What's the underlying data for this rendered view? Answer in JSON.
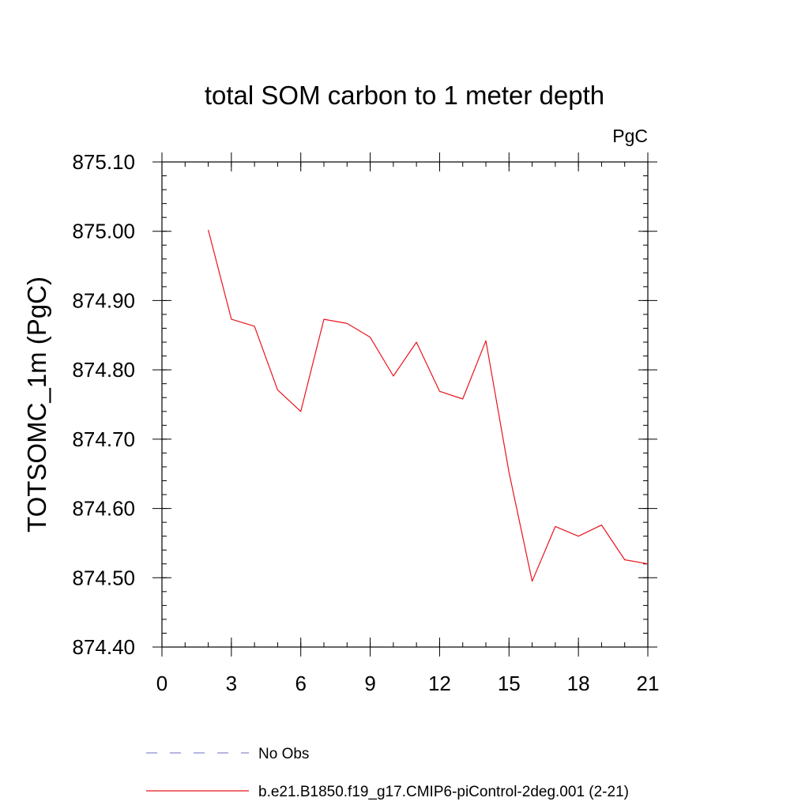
{
  "chart_data": {
    "type": "line",
    "title": "total SOM carbon to 1 meter depth",
    "units_label": "PgC",
    "ylabel": "TOTSOMC_1m  (PgC)",
    "xlabel": "",
    "xlim": [
      0,
      21
    ],
    "ylim": [
      874.4,
      875.1
    ],
    "x_ticks": [
      0,
      3,
      6,
      9,
      12,
      15,
      18,
      21
    ],
    "x_tick_labels": [
      "0",
      "3",
      "6",
      "9",
      "12",
      "15",
      "18",
      "21"
    ],
    "y_ticks": [
      874.4,
      874.5,
      874.6,
      874.7,
      874.8,
      874.9,
      875.0,
      875.1
    ],
    "y_tick_labels": [
      "874.40",
      "874.50",
      "874.60",
      "874.70",
      "874.80",
      "874.90",
      "875.00",
      "875.10"
    ],
    "x_minor_step": 1,
    "y_minor_step": 0.02,
    "series": [
      {
        "name": "b.e21.B1850.f19_g17.CMIP6-piControl-2deg.001 (2-21)",
        "color": "#e8141c",
        "dash": "solid",
        "x": [
          2,
          3,
          4,
          5,
          6,
          7,
          8,
          9,
          10,
          11,
          12,
          13,
          14,
          15,
          16,
          17,
          18,
          19,
          20,
          21
        ],
        "values": [
          875.002,
          874.873,
          874.863,
          874.771,
          874.74,
          874.873,
          874.867,
          874.847,
          874.791,
          874.84,
          874.769,
          874.758,
          874.842,
          874.652,
          874.495,
          874.574,
          874.56,
          874.576,
          874.526,
          874.52
        ]
      }
    ],
    "legend": [
      {
        "label": "No Obs",
        "color": "#8a8acf",
        "dash": "dashed"
      },
      {
        "label": "b.e21.B1850.f19_g17.CMIP6-piControl-2deg.001 (2-21)",
        "color": "#e8141c",
        "dash": "solid"
      }
    ],
    "legend_position": "bottom"
  }
}
